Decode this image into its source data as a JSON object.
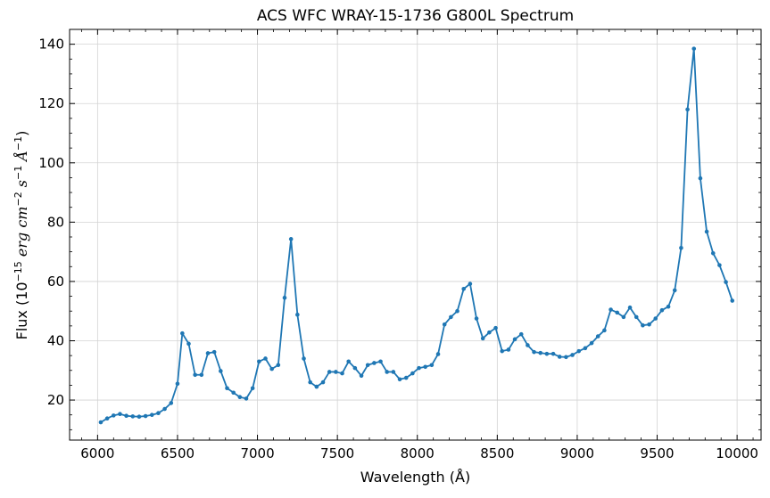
{
  "chart_data": {
    "type": "line",
    "title": "ACS WFC WRAY-15-1736 G800L Spectrum",
    "xlabel": "Wavelength (Å)",
    "ylabel": {
      "prefix": "Flux (10",
      "exp1": "−15",
      "unit_erg": "erg",
      "unit_cm": "cm",
      "exp2": "−2",
      "unit_s": "s",
      "exp3": "−1",
      "unit_a": "Å",
      "exp4": "−1",
      "suffix": ")"
    },
    "xlim": [
      5825,
      10150
    ],
    "ylim": [
      6.5,
      145
    ],
    "xticks": [
      6000,
      6500,
      7000,
      7500,
      8000,
      8500,
      9000,
      9500,
      10000
    ],
    "yticks": [
      20,
      40,
      60,
      80,
      100,
      120,
      140
    ],
    "grid": true,
    "colors": {
      "line": "#1f77b4",
      "grid": "#d3d3d3",
      "axes": "#000000"
    },
    "series": [
      {
        "x": [
          6020,
          6060,
          6100,
          6140,
          6180,
          6220,
          6260,
          6300,
          6340,
          6380,
          6420,
          6460,
          6500,
          6530,
          6570,
          6610,
          6650,
          6690,
          6730,
          6770,
          6810,
          6850,
          6890,
          6930,
          6970,
          7010,
          7050,
          7090,
          7130,
          7170,
          7210,
          7250,
          7290,
          7330,
          7370,
          7410,
          7450,
          7490,
          7530,
          7570,
          7610,
          7650,
          7690,
          7730,
          7770,
          7810,
          7850,
          7890,
          7930,
          7970,
          8010,
          8050,
          8090,
          8130,
          8170,
          8210,
          8250,
          8290,
          8330,
          8370,
          8410,
          8450,
          8490,
          8530,
          8570,
          8610,
          8650,
          8690,
          8730,
          8770,
          8810,
          8850,
          8890,
          8930,
          8970,
          9010,
          9050,
          9090,
          9130,
          9170,
          9210,
          9250,
          9290,
          9330,
          9370,
          9410,
          9450,
          9490,
          9530,
          9570,
          9610,
          9650,
          9690,
          9730,
          9770,
          9810,
          9850,
          9890,
          9930,
          9970
        ],
        "values": [
          12.5,
          13.8,
          14.8,
          15.3,
          14.7,
          14.5,
          14.4,
          14.6,
          15.0,
          15.6,
          17.0,
          19.0,
          25.5,
          42.5,
          39.0,
          28.5,
          28.5,
          35.8,
          36.2,
          29.8,
          24.0,
          22.5,
          21.0,
          20.5,
          24.0,
          33.0,
          34.0,
          30.5,
          31.8,
          54.5,
          74.3,
          48.8,
          34.0,
          26.0,
          24.5,
          26.0,
          29.5,
          29.5,
          29.0,
          33.0,
          30.8,
          28.2,
          31.8,
          32.5,
          33.0,
          29.5,
          29.5,
          27.0,
          27.5,
          29.0,
          30.8,
          31.2,
          31.8,
          35.5,
          45.5,
          48.0,
          50.0,
          57.5,
          59.2,
          47.5,
          40.8,
          42.8,
          44.3,
          36.5,
          37.0,
          40.5,
          42.2,
          38.5,
          36.2,
          35.9,
          35.6,
          35.6,
          34.6,
          34.5,
          35.2,
          36.5,
          37.5,
          39.2,
          41.5,
          43.5,
          50.5,
          49.5,
          48.0,
          51.2,
          48.0,
          45.2,
          45.5,
          47.5,
          50.3,
          51.5,
          57.0,
          71.3,
          118.0,
          138.5,
          94.8,
          76.8,
          69.5,
          65.5,
          59.8,
          53.5
        ]
      }
    ]
  }
}
